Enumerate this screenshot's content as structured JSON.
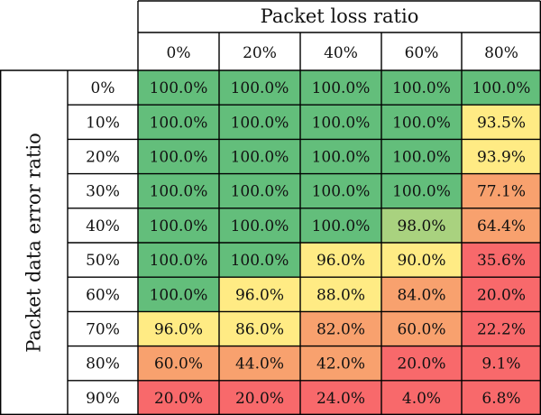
{
  "chart_data": {
    "type": "heatmap",
    "title": "",
    "xlabel": "Packet loss ratio",
    "ylabel": "Packet data error ratio",
    "x_categories": [
      "0%",
      "20%",
      "40%",
      "60%",
      "80%"
    ],
    "y_categories": [
      "0%",
      "10%",
      "20%",
      "30%",
      "40%",
      "50%",
      "60%",
      "70%",
      "80%",
      "90%"
    ],
    "values": [
      [
        100.0,
        100.0,
        100.0,
        100.0,
        100.0
      ],
      [
        100.0,
        100.0,
        100.0,
        100.0,
        93.5
      ],
      [
        100.0,
        100.0,
        100.0,
        100.0,
        93.9
      ],
      [
        100.0,
        100.0,
        100.0,
        100.0,
        77.1
      ],
      [
        100.0,
        100.0,
        100.0,
        98.0,
        64.4
      ],
      [
        100.0,
        100.0,
        96.0,
        90.0,
        35.6
      ],
      [
        100.0,
        96.0,
        88.0,
        84.0,
        20.0
      ],
      [
        96.0,
        86.0,
        82.0,
        60.0,
        22.2
      ],
      [
        60.0,
        44.0,
        42.0,
        20.0,
        9.1
      ],
      [
        20.0,
        20.0,
        24.0,
        4.0,
        6.8
      ]
    ],
    "value_labels": [
      [
        "100.0%",
        "100.0%",
        "100.0%",
        "100.0%",
        "100.0%"
      ],
      [
        "100.0%",
        "100.0%",
        "100.0%",
        "100.0%",
        "93.5%"
      ],
      [
        "100.0%",
        "100.0%",
        "100.0%",
        "100.0%",
        "93.9%"
      ],
      [
        "100.0%",
        "100.0%",
        "100.0%",
        "100.0%",
        "77.1%"
      ],
      [
        "100.0%",
        "100.0%",
        "100.0%",
        "98.0%",
        "64.4%"
      ],
      [
        "100.0%",
        "100.0%",
        "96.0%",
        "90.0%",
        "35.6%"
      ],
      [
        "100.0%",
        "96.0%",
        "88.0%",
        "84.0%",
        "20.0%"
      ],
      [
        "96.0%",
        "86.0%",
        "82.0%",
        "60.0%",
        "22.2%"
      ],
      [
        "60.0%",
        "44.0%",
        "42.0%",
        "20.0%",
        "9.1%"
      ],
      [
        "20.0%",
        "20.0%",
        "24.0%",
        "4.0%",
        "6.8%"
      ]
    ],
    "colors": {
      "green": "#63be7b",
      "light_green": "#a9d27f",
      "yellow": "#ffeb84",
      "orange": "#f8a16e",
      "red": "#f8696b",
      "grid_line": "#000000",
      "text": "#111111"
    },
    "legend": "none"
  }
}
